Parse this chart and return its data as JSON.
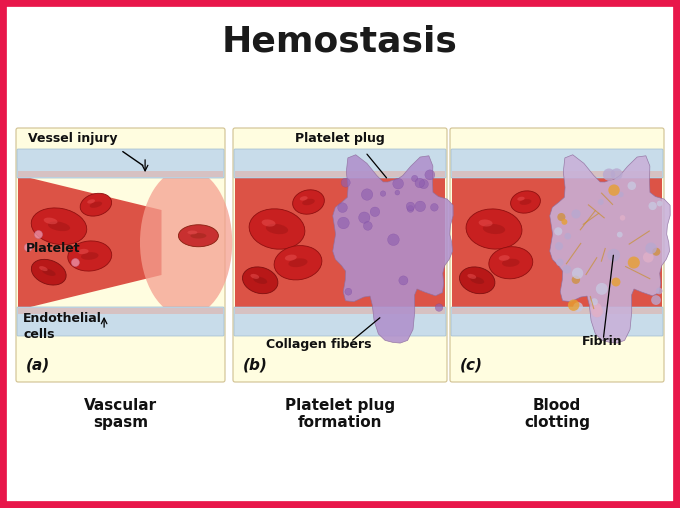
{
  "title": "Hemostasis",
  "title_fontsize": 26,
  "title_fontweight": "bold",
  "bg_color": "#ffffff",
  "border_color": "#e8174a",
  "border_width": 7,
  "panel_bg": "#fffde0",
  "panel_labels": [
    "(a)",
    "(b)",
    "(c)"
  ],
  "panel_subtitles": [
    "Vascular\nspasm",
    "Platelet plug\nformation",
    "Blood\nclotting"
  ],
  "vessel_wall_top_color": "#b8d4e8",
  "vessel_wall_bot_color": "#b8d4e8",
  "blood_color": "#d94035",
  "rbc_color": "#c02020",
  "rbc_dark": "#8a1010",
  "platelet_plug_color": "#b090cc",
  "fibrin_color_main": "#c8a8d8",
  "fibrin_orange": "#e8a040",
  "injury_glow": "#f5a090",
  "label_fontsize": 8.5,
  "subtitle_fontsize": 11,
  "panel_label_fontsize": 11,
  "annot_fontsize": 9
}
